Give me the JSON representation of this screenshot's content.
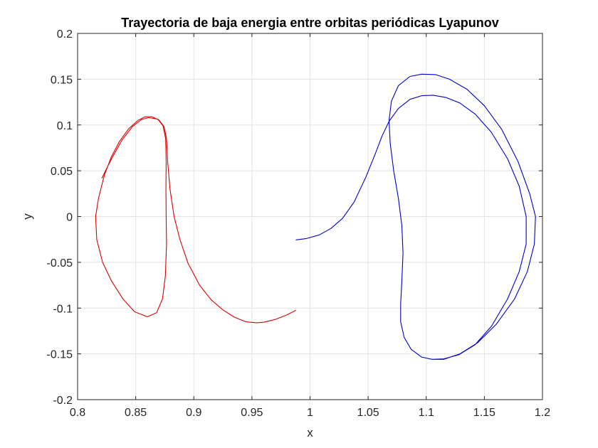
{
  "chart_data": {
    "type": "line",
    "title": "Trayectoria de baja energia entre orbitas periódicas Lyapunov",
    "xlabel": "x",
    "ylabel": "y",
    "xlim": [
      0.8,
      1.2
    ],
    "ylim": [
      -0.2,
      0.2
    ],
    "xticks": [
      0.8,
      0.85,
      0.9,
      0.95,
      1,
      1.05,
      1.1,
      1.15,
      1.2
    ],
    "xtick_labels": [
      "0.8",
      "0.85",
      "0.9",
      "0.95",
      "1",
      "1.05",
      "1.1",
      "1.15",
      "1.2"
    ],
    "yticks": [
      -0.2,
      -0.15,
      -0.1,
      -0.05,
      0,
      0.05,
      0.1,
      0.15,
      0.2
    ],
    "ytick_labels": [
      "-0.2",
      "-0.15",
      "-0.1",
      "-0.05",
      "0",
      "0.05",
      "0.1",
      "0.15",
      "0.2"
    ],
    "grid": true,
    "legend": "none",
    "series": [
      {
        "color": "#dd0000",
        "points": [
          [
            0.9876,
            -0.1025
          ],
          [
            0.98,
            -0.1075
          ],
          [
            0.97,
            -0.1125
          ],
          [
            0.96,
            -0.1155
          ],
          [
            0.954,
            -0.116
          ],
          [
            0.945,
            -0.115
          ],
          [
            0.935,
            -0.11
          ],
          [
            0.925,
            -0.102
          ],
          [
            0.915,
            -0.091
          ],
          [
            0.905,
            -0.075
          ],
          [
            0.895,
            -0.051
          ],
          [
            0.888,
            -0.025
          ],
          [
            0.883,
            0.0
          ],
          [
            0.8795,
            0.03
          ],
          [
            0.8775,
            0.06
          ],
          [
            0.8765,
            0.085
          ],
          [
            0.8745,
            0.098
          ],
          [
            0.87,
            0.1055
          ],
          [
            0.864,
            0.109
          ],
          [
            0.858,
            0.109
          ],
          [
            0.852,
            0.105
          ],
          [
            0.844,
            0.096
          ],
          [
            0.836,
            0.082
          ],
          [
            0.829,
            0.065
          ],
          [
            0.823,
            0.045
          ],
          [
            0.818,
            0.02
          ],
          [
            0.8155,
            0.0
          ],
          [
            0.8165,
            -0.025
          ],
          [
            0.8215,
            -0.05
          ],
          [
            0.829,
            -0.07
          ],
          [
            0.839,
            -0.09
          ],
          [
            0.849,
            -0.104
          ],
          [
            0.86,
            -0.1095
          ],
          [
            0.868,
            -0.105
          ],
          [
            0.873,
            -0.09
          ],
          [
            0.8755,
            -0.065
          ],
          [
            0.8765,
            -0.03
          ],
          [
            0.8762,
            0.0
          ],
          [
            0.876,
            0.03
          ],
          [
            0.8762,
            0.06
          ],
          [
            0.8758,
            0.085
          ],
          [
            0.8735,
            0.099
          ],
          [
            0.869,
            0.1065
          ],
          [
            0.861,
            0.108
          ],
          [
            0.855,
            0.106
          ],
          [
            0.847,
            0.098
          ],
          [
            0.838,
            0.083
          ],
          [
            0.83,
            0.065
          ],
          [
            0.824,
            0.05
          ],
          [
            0.821,
            0.042
          ]
        ]
      },
      {
        "color": "#0000cc",
        "points": [
          [
            0.988,
            -0.0255
          ],
          [
            0.997,
            -0.024
          ],
          [
            1.008,
            -0.02
          ],
          [
            1.018,
            -0.013
          ],
          [
            1.028,
            -0.002
          ],
          [
            1.038,
            0.016
          ],
          [
            1.048,
            0.043
          ],
          [
            1.056,
            0.068
          ],
          [
            1.062,
            0.088
          ],
          [
            1.068,
            0.104
          ],
          [
            1.076,
            0.118
          ],
          [
            1.086,
            0.128
          ],
          [
            1.096,
            0.132
          ],
          [
            1.106,
            0.1325
          ],
          [
            1.117,
            0.13
          ],
          [
            1.129,
            0.124
          ],
          [
            1.142,
            0.112
          ],
          [
            1.156,
            0.092
          ],
          [
            1.17,
            0.063
          ],
          [
            1.18,
            0.033
          ],
          [
            1.186,
            0.0
          ],
          [
            1.186,
            -0.03
          ],
          [
            1.18,
            -0.06
          ],
          [
            1.17,
            -0.09
          ],
          [
            1.156,
            -0.12
          ],
          [
            1.142,
            -0.14
          ],
          [
            1.128,
            -0.151
          ],
          [
            1.115,
            -0.1555
          ],
          [
            1.105,
            -0.156
          ],
          [
            1.096,
            -0.1535
          ],
          [
            1.087,
            -0.145
          ],
          [
            1.081,
            -0.132
          ],
          [
            1.078,
            -0.115
          ],
          [
            1.078,
            -0.095
          ],
          [
            1.079,
            -0.07
          ],
          [
            1.08,
            -0.04
          ],
          [
            1.079,
            -0.01
          ],
          [
            1.076,
            0.02
          ],
          [
            1.072,
            0.05
          ],
          [
            1.069,
            0.08
          ],
          [
            1.068,
            0.105
          ],
          [
            1.07,
            0.126
          ],
          [
            1.076,
            0.143
          ],
          [
            1.086,
            0.153
          ],
          [
            1.096,
            0.1555
          ],
          [
            1.108,
            0.155
          ],
          [
            1.12,
            0.15
          ],
          [
            1.135,
            0.139
          ],
          [
            1.15,
            0.121
          ],
          [
            1.165,
            0.095
          ],
          [
            1.179,
            0.06
          ],
          [
            1.189,
            0.025
          ],
          [
            1.194,
            0.0
          ],
          [
            1.193,
            -0.03
          ],
          [
            1.187,
            -0.06
          ],
          [
            1.176,
            -0.09
          ],
          [
            1.16,
            -0.118
          ],
          [
            1.144,
            -0.138
          ],
          [
            1.129,
            -0.15
          ],
          [
            1.115,
            -0.156
          ],
          [
            1.105,
            -0.156
          ]
        ]
      }
    ]
  }
}
